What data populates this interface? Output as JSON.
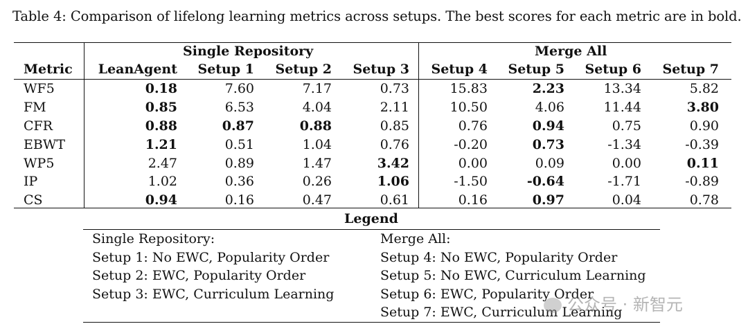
{
  "caption": "Table 4: Comparison of lifelong learning metrics across setups. The best scores for each metric are in bold.",
  "table": {
    "group_headers": [
      "Single Repository",
      "Merge All"
    ],
    "columns": [
      "Metric",
      "LeanAgent",
      "Setup 1",
      "Setup 2",
      "Setup 3",
      "Setup 4",
      "Setup 5",
      "Setup 6",
      "Setup 7"
    ],
    "rows": [
      {
        "metric": "WF5",
        "values": [
          "0.18",
          "7.60",
          "7.17",
          "0.73",
          "15.83",
          "2.23",
          "13.34",
          "5.82"
        ],
        "bold": [
          true,
          false,
          false,
          false,
          false,
          true,
          false,
          false
        ]
      },
      {
        "metric": "FM",
        "values": [
          "0.85",
          "6.53",
          "4.04",
          "2.11",
          "10.50",
          "4.06",
          "11.44",
          "3.80"
        ],
        "bold": [
          true,
          false,
          false,
          false,
          false,
          false,
          false,
          true
        ]
      },
      {
        "metric": "CFR",
        "values": [
          "0.88",
          "0.87",
          "0.88",
          "0.85",
          "0.76",
          "0.94",
          "0.75",
          "0.90"
        ],
        "bold": [
          true,
          true,
          true,
          false,
          false,
          true,
          false,
          false
        ]
      },
      {
        "metric": "EBWT",
        "values": [
          "1.21",
          "0.51",
          "1.04",
          "0.76",
          "-0.20",
          "0.73",
          "-1.34",
          "-0.39"
        ],
        "bold": [
          true,
          false,
          false,
          false,
          false,
          true,
          false,
          false
        ]
      },
      {
        "metric": "WP5",
        "values": [
          "2.47",
          "0.89",
          "1.47",
          "3.42",
          "0.00",
          "0.09",
          "0.00",
          "0.11"
        ],
        "bold": [
          false,
          false,
          false,
          true,
          false,
          false,
          false,
          true
        ]
      },
      {
        "metric": "IP",
        "values": [
          "1.02",
          "0.36",
          "0.26",
          "1.06",
          "-1.50",
          "-0.64",
          "-1.71",
          "-0.89"
        ],
        "bold": [
          false,
          false,
          false,
          true,
          false,
          true,
          false,
          false
        ]
      },
      {
        "metric": "CS",
        "values": [
          "0.94",
          "0.16",
          "0.47",
          "0.61",
          "0.16",
          "0.97",
          "0.04",
          "0.78"
        ],
        "bold": [
          true,
          false,
          false,
          false,
          false,
          true,
          false,
          false
        ]
      }
    ]
  },
  "legend": {
    "title": "Legend",
    "left": [
      "Single Repository:",
      "Setup 1: No EWC, Popularity Order",
      "Setup 2: EWC, Popularity Order",
      "Setup 3: EWC, Curriculum Learning"
    ],
    "right": [
      "Merge All:",
      "Setup 4: No EWC, Popularity Order",
      "Setup 5: No EWC, Curriculum Learning",
      "Setup 6: EWC, Popularity Order",
      "Setup 7: EWC, Curriculum Learning"
    ]
  },
  "watermark": "公众号 · 新智元"
}
